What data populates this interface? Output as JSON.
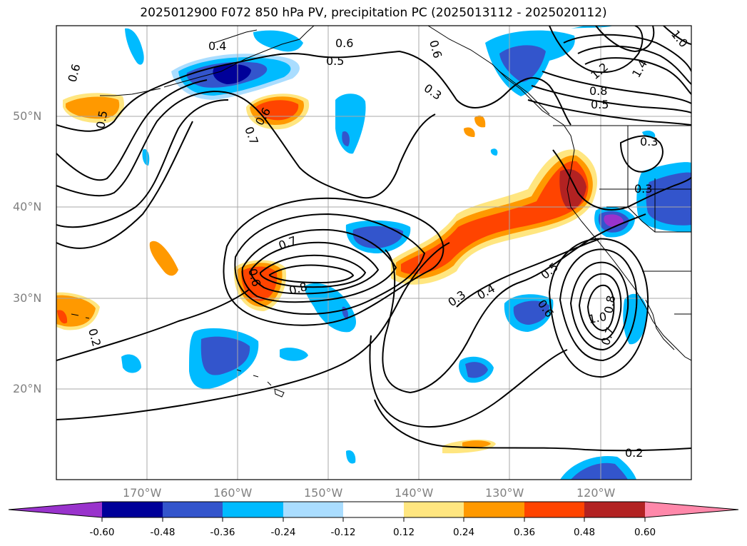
{
  "title": "2025012900 F072 850 hPa PV, precipitation PC (2025013112 - 2025020112)",
  "map": {
    "lat_labels": [
      "50°N",
      "40°N",
      "30°N",
      "20°N"
    ],
    "lon_labels": [
      "170°W",
      "160°W",
      "150°W",
      "140°W",
      "130°W",
      "120°W"
    ],
    "contour_labels": [
      "0.4",
      "0.6",
      "0.5",
      "0.6",
      "0.3",
      "0.6",
      "0.5",
      "0.7",
      "0.6",
      "0.7",
      "0.6",
      "0.8",
      "0.3",
      "0.4",
      "0.5",
      "0.6",
      "1.0",
      "0.8",
      "0.7",
      "0.2",
      "0.2",
      "1.2",
      "1.4",
      "1.0",
      "0.8",
      "0.5",
      "0.3",
      "0.3"
    ],
    "grid": true,
    "projection": "lat-lon",
    "extent": {
      "lon": [
        -180,
        -110
      ],
      "lat": [
        10,
        60
      ]
    }
  },
  "colorbar": {
    "ticks": [
      "-0.60",
      "-0.48",
      "-0.36",
      "-0.24",
      "-0.12",
      "0.12",
      "0.24",
      "0.36",
      "0.48",
      "0.60"
    ],
    "colors": [
      "#9933cc",
      "#000099",
      "#3355cc",
      "#00bbff",
      "#aaddff",
      "#ffffff",
      "#ffe680",
      "#ff9900",
      "#ff4400",
      "#b22222",
      "#ff88aa"
    ],
    "extend": "both"
  }
}
